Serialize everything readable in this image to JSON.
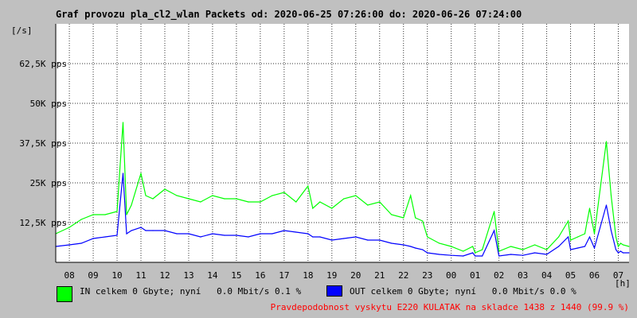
{
  "chart_data": {
    "type": "line",
    "title": "Graf provozu pla_cl2_wlan Packets od: 2020-06-25 07:26:00 do: 2020-06-26 07:24:00",
    "ylabel": "[/s]",
    "xlabel": "[h]",
    "ylim": [
      0,
      75000
    ],
    "y_ticks": [
      12500,
      25000,
      37500,
      50000,
      62500
    ],
    "y_tick_labels": [
      "12,5K pps",
      "25K pps",
      "37,5K pps",
      "50K pps",
      "62,5K pps"
    ],
    "categories": [
      "08",
      "09",
      "10",
      "11",
      "12",
      "13",
      "14",
      "15",
      "16",
      "17",
      "18",
      "19",
      "20",
      "21",
      "22",
      "23",
      "00",
      "01",
      "02",
      "03",
      "04",
      "05",
      "06",
      "07"
    ],
    "grid": true,
    "series": [
      {
        "name": "IN",
        "color": "#00ff00",
        "x": [
          7.43,
          8,
          8.5,
          9,
          9.5,
          10,
          10.25,
          10.4,
          10.6,
          11,
          11.2,
          11.5,
          12,
          12.5,
          13,
          13.5,
          14,
          14.5,
          15,
          15.5,
          16,
          16.5,
          17,
          17.5,
          18,
          18.2,
          18.5,
          19,
          19.5,
          20,
          20.5,
          21,
          21.5,
          22,
          22.3,
          22.5,
          22.8,
          23,
          23.5,
          24,
          24.5,
          24.9,
          25,
          25.3,
          25.8,
          26,
          26.5,
          27,
          27.5,
          28,
          28.5,
          28.9,
          29,
          29.3,
          29.6,
          29.8,
          30,
          30.5,
          30.7,
          30.9,
          31,
          31.1,
          31.2,
          31.45
        ],
        "values": [
          9000,
          11000,
          13500,
          15000,
          15000,
          16000,
          44000,
          15000,
          18000,
          28000,
          21000,
          20000,
          23000,
          21000,
          20000,
          19000,
          21000,
          20000,
          20000,
          19000,
          19000,
          21000,
          22000,
          19000,
          24000,
          17000,
          19000,
          17000,
          20000,
          21000,
          18000,
          19000,
          15000,
          14000,
          21000,
          14000,
          13000,
          8000,
          6000,
          5000,
          3500,
          5000,
          3000,
          4000,
          16000,
          3500,
          5000,
          4000,
          5500,
          4000,
          8000,
          13000,
          7000,
          8000,
          9000,
          17000,
          9000,
          38000,
          21000,
          8000,
          5000,
          6000,
          5500,
          5000
        ]
      },
      {
        "name": "OUT",
        "color": "#0000ff",
        "x": [
          7.43,
          8,
          8.5,
          9,
          9.5,
          10,
          10.25,
          10.4,
          10.6,
          11,
          11.2,
          11.5,
          12,
          12.5,
          13,
          13.5,
          14,
          14.5,
          15,
          15.5,
          16,
          16.5,
          17,
          17.5,
          18,
          18.2,
          18.5,
          19,
          19.5,
          20,
          20.5,
          21,
          21.5,
          22,
          22.3,
          22.5,
          22.8,
          23,
          23.5,
          24,
          24.5,
          24.9,
          25,
          25.3,
          25.8,
          26,
          26.5,
          27,
          27.5,
          28,
          28.5,
          28.9,
          29,
          29.3,
          29.6,
          29.8,
          30,
          30.5,
          30.7,
          30.9,
          31,
          31.1,
          31.2,
          31.45
        ],
        "values": [
          5000,
          5500,
          6000,
          7500,
          8000,
          8500,
          28000,
          9000,
          10000,
          11000,
          10000,
          10000,
          10000,
          9000,
          9000,
          8000,
          9000,
          8500,
          8500,
          8000,
          9000,
          9000,
          10000,
          9500,
          9000,
          8000,
          8000,
          7000,
          7500,
          8000,
          7000,
          7000,
          6000,
          5500,
          5000,
          4500,
          4000,
          3000,
          2500,
          2200,
          2000,
          3000,
          2000,
          2000,
          10000,
          2000,
          2500,
          2200,
          3000,
          2500,
          5000,
          8000,
          4000,
          4500,
          5000,
          8000,
          4500,
          18000,
          10000,
          4000,
          3000,
          3500,
          3000,
          3000
        ]
      }
    ]
  },
  "legend": {
    "in_text": "IN celkem 0 Gbyte; nyní   0.0 Mbit/s 0.1 %",
    "out_text": "OUT celkem 0 Gbyte; nyní   0.0 Mbit/s 0.0 %",
    "in_color": "#00ff00",
    "out_color": "#0000ff"
  },
  "footer_note": "Pravdepodobnost vyskytu E220 KULATAK na skladce 1438 z 1440 (99.9 %)",
  "footer_color": "#ff0000"
}
